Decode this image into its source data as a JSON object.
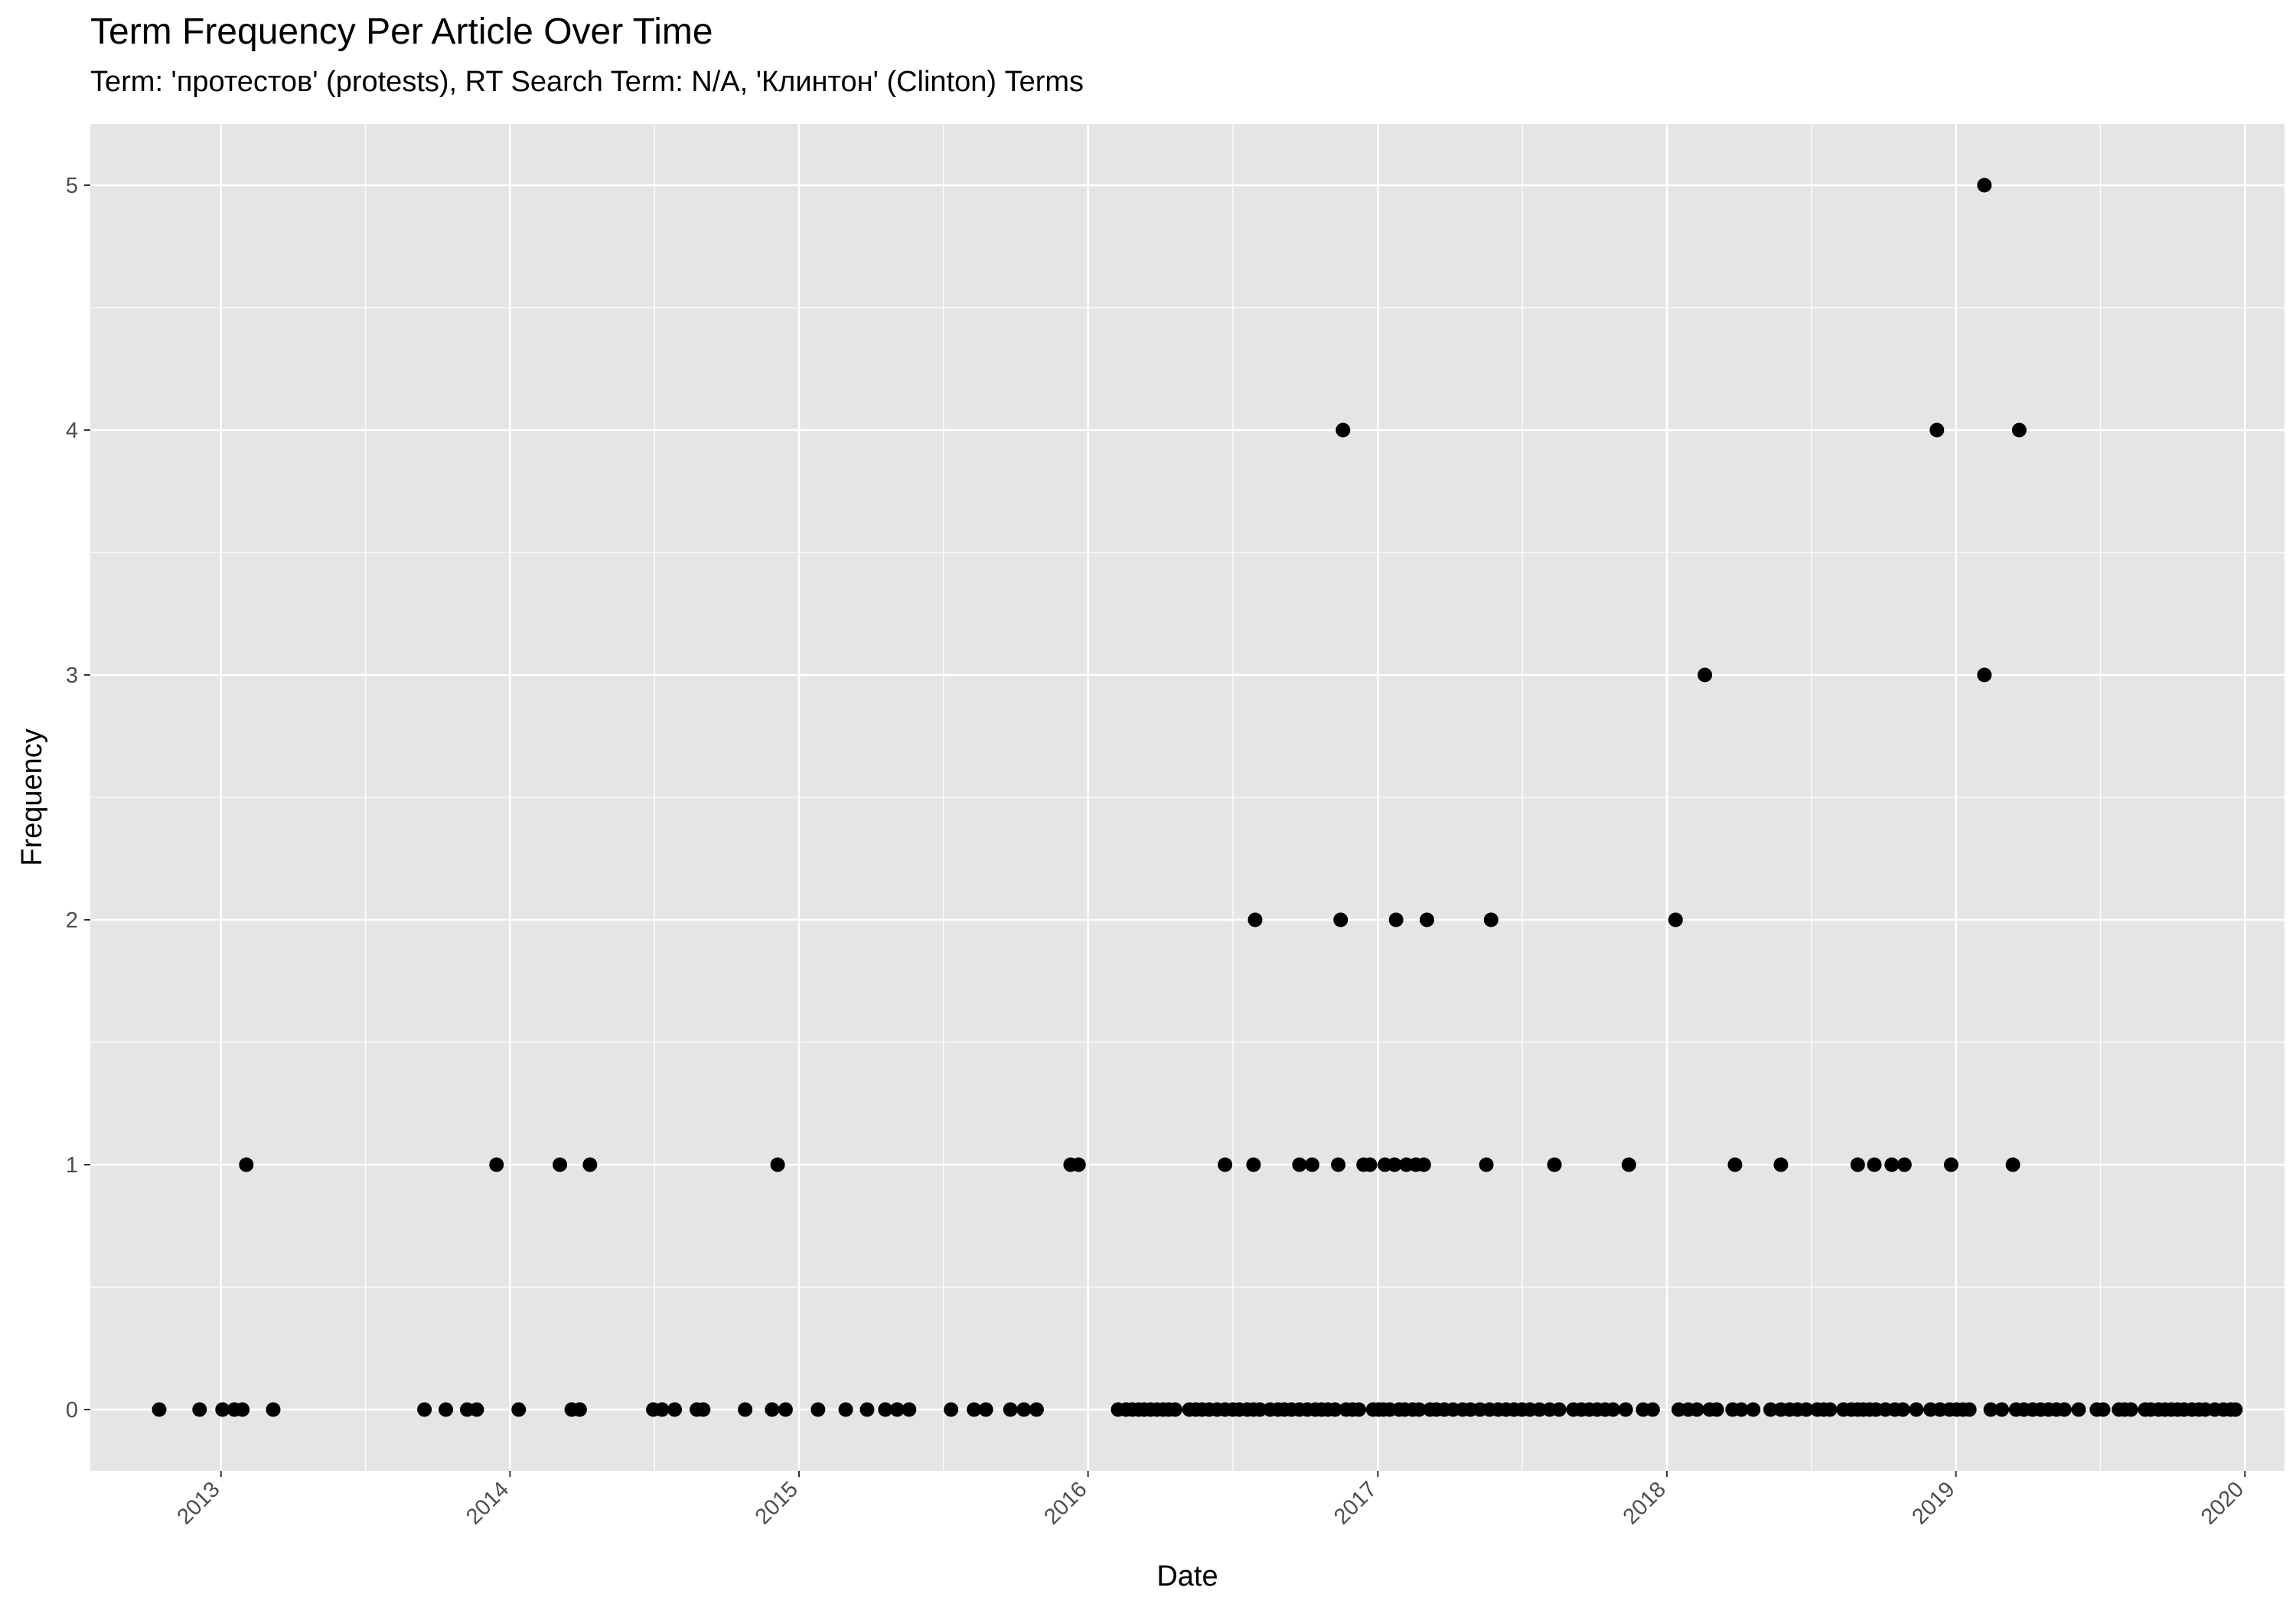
{
  "chart_data": {
    "type": "scatter",
    "title": "Term Frequency Per Article Over Time",
    "subtitle": "Term: 'протестов' (protests), RT Search Term: N/A, 'Клинтон' (Clinton) Terms",
    "xlabel": "Date",
    "ylabel": "Frequency",
    "x_ticks": [
      "2013",
      "2014",
      "2015",
      "2016",
      "2017",
      "2018",
      "2019",
      "2020"
    ],
    "y_ticks": [
      "0",
      "1",
      "2",
      "3",
      "4",
      "5"
    ],
    "xlim": [
      "2012-07-20",
      "2020-02-20"
    ],
    "ylim": [
      -0.25,
      5.25
    ],
    "grid": true,
    "point_color": "#000000",
    "panel_color": "#e5e5e5",
    "gridline_color": "#ffffff",
    "points": [
      {
        "x": "2012-10-15",
        "y": 0
      },
      {
        "x": "2012-12-05",
        "y": 0
      },
      {
        "x": "2013-01-03",
        "y": 0
      },
      {
        "x": "2013-01-18",
        "y": 0
      },
      {
        "x": "2013-01-28",
        "y": 0
      },
      {
        "x": "2013-02-02",
        "y": 1
      },
      {
        "x": "2013-03-08",
        "y": 0
      },
      {
        "x": "2013-09-15",
        "y": 0
      },
      {
        "x": "2013-10-12",
        "y": 0
      },
      {
        "x": "2013-11-08",
        "y": 0
      },
      {
        "x": "2013-11-20",
        "y": 0
      },
      {
        "x": "2013-12-15",
        "y": 1
      },
      {
        "x": "2014-01-12",
        "y": 0
      },
      {
        "x": "2014-03-05",
        "y": 1
      },
      {
        "x": "2014-03-20",
        "y": 0
      },
      {
        "x": "2014-03-30",
        "y": 0
      },
      {
        "x": "2014-04-12",
        "y": 1
      },
      {
        "x": "2014-07-01",
        "y": 0
      },
      {
        "x": "2014-07-12",
        "y": 0
      },
      {
        "x": "2014-07-28",
        "y": 0
      },
      {
        "x": "2014-08-25",
        "y": 0
      },
      {
        "x": "2014-09-02",
        "y": 0
      },
      {
        "x": "2014-10-25",
        "y": 0
      },
      {
        "x": "2014-11-28",
        "y": 0
      },
      {
        "x": "2014-12-05",
        "y": 1
      },
      {
        "x": "2014-12-15",
        "y": 0
      },
      {
        "x": "2015-01-25",
        "y": 0
      },
      {
        "x": "2015-03-01",
        "y": 0
      },
      {
        "x": "2015-03-28",
        "y": 0
      },
      {
        "x": "2015-04-20",
        "y": 0
      },
      {
        "x": "2015-05-05",
        "y": 0
      },
      {
        "x": "2015-05-20",
        "y": 0
      },
      {
        "x": "2015-07-12",
        "y": 0
      },
      {
        "x": "2015-08-10",
        "y": 0
      },
      {
        "x": "2015-08-25",
        "y": 0
      },
      {
        "x": "2015-09-25",
        "y": 0
      },
      {
        "x": "2015-10-12",
        "y": 0
      },
      {
        "x": "2015-10-28",
        "y": 0
      },
      {
        "x": "2015-12-10",
        "y": 1
      },
      {
        "x": "2015-12-20",
        "y": 1
      },
      {
        "x": "2016-02-08",
        "y": 0
      },
      {
        "x": "2016-02-18",
        "y": 0
      },
      {
        "x": "2016-02-26",
        "y": 0
      },
      {
        "x": "2016-03-05",
        "y": 0
      },
      {
        "x": "2016-03-12",
        "y": 0
      },
      {
        "x": "2016-03-20",
        "y": 0
      },
      {
        "x": "2016-03-28",
        "y": 0
      },
      {
        "x": "2016-04-05",
        "y": 0
      },
      {
        "x": "2016-04-12",
        "y": 0
      },
      {
        "x": "2016-04-20",
        "y": 0
      },
      {
        "x": "2016-05-08",
        "y": 0
      },
      {
        "x": "2016-05-16",
        "y": 0
      },
      {
        "x": "2016-05-24",
        "y": 0
      },
      {
        "x": "2016-06-02",
        "y": 0
      },
      {
        "x": "2016-06-12",
        "y": 0
      },
      {
        "x": "2016-06-22",
        "y": 0
      },
      {
        "x": "2016-06-22",
        "y": 1
      },
      {
        "x": "2016-07-02",
        "y": 0
      },
      {
        "x": "2016-07-10",
        "y": 0
      },
      {
        "x": "2016-07-20",
        "y": 0
      },
      {
        "x": "2016-07-28",
        "y": 0
      },
      {
        "x": "2016-07-28",
        "y": 1
      },
      {
        "x": "2016-07-30",
        "y": 2
      },
      {
        "x": "2016-08-05",
        "y": 0
      },
      {
        "x": "2016-08-18",
        "y": 0
      },
      {
        "x": "2016-08-28",
        "y": 0
      },
      {
        "x": "2016-09-05",
        "y": 0
      },
      {
        "x": "2016-09-14",
        "y": 0
      },
      {
        "x": "2016-09-24",
        "y": 0
      },
      {
        "x": "2016-09-24",
        "y": 1
      },
      {
        "x": "2016-10-04",
        "y": 0
      },
      {
        "x": "2016-10-10",
        "y": 1
      },
      {
        "x": "2016-10-14",
        "y": 0
      },
      {
        "x": "2016-10-22",
        "y": 0
      },
      {
        "x": "2016-10-30",
        "y": 0
      },
      {
        "x": "2016-11-08",
        "y": 0
      },
      {
        "x": "2016-11-12",
        "y": 1
      },
      {
        "x": "2016-11-15",
        "y": 2
      },
      {
        "x": "2016-11-18",
        "y": 4
      },
      {
        "x": "2016-11-22",
        "y": 0
      },
      {
        "x": "2016-11-30",
        "y": 0
      },
      {
        "x": "2016-12-08",
        "y": 0
      },
      {
        "x": "2016-12-14",
        "y": 1
      },
      {
        "x": "2016-12-22",
        "y": 1
      },
      {
        "x": "2016-12-26",
        "y": 0
      },
      {
        "x": "2017-01-02",
        "y": 0
      },
      {
        "x": "2017-01-08",
        "y": 0
      },
      {
        "x": "2017-01-10",
        "y": 1
      },
      {
        "x": "2017-01-16",
        "y": 0
      },
      {
        "x": "2017-01-22",
        "y": 1
      },
      {
        "x": "2017-01-24",
        "y": 2
      },
      {
        "x": "2017-01-28",
        "y": 0
      },
      {
        "x": "2017-02-04",
        "y": 0
      },
      {
        "x": "2017-02-06",
        "y": 1
      },
      {
        "x": "2017-02-14",
        "y": 0
      },
      {
        "x": "2017-02-18",
        "y": 1
      },
      {
        "x": "2017-02-22",
        "y": 0
      },
      {
        "x": "2017-02-28",
        "y": 1
      },
      {
        "x": "2017-03-04",
        "y": 2
      },
      {
        "x": "2017-03-08",
        "y": 0
      },
      {
        "x": "2017-03-16",
        "y": 0
      },
      {
        "x": "2017-03-26",
        "y": 0
      },
      {
        "x": "2017-04-06",
        "y": 0
      },
      {
        "x": "2017-04-18",
        "y": 0
      },
      {
        "x": "2017-04-28",
        "y": 0
      },
      {
        "x": "2017-05-10",
        "y": 0
      },
      {
        "x": "2017-05-18",
        "y": 1
      },
      {
        "x": "2017-05-22",
        "y": 0
      },
      {
        "x": "2017-05-24",
        "y": 2
      },
      {
        "x": "2017-06-02",
        "y": 0
      },
      {
        "x": "2017-06-12",
        "y": 0
      },
      {
        "x": "2017-06-22",
        "y": 0
      },
      {
        "x": "2017-07-02",
        "y": 0
      },
      {
        "x": "2017-07-12",
        "y": 0
      },
      {
        "x": "2017-07-24",
        "y": 0
      },
      {
        "x": "2017-08-06",
        "y": 0
      },
      {
        "x": "2017-08-12",
        "y": 1
      },
      {
        "x": "2017-08-18",
        "y": 0
      },
      {
        "x": "2017-09-05",
        "y": 0
      },
      {
        "x": "2017-09-15",
        "y": 0
      },
      {
        "x": "2017-09-25",
        "y": 0
      },
      {
        "x": "2017-10-05",
        "y": 0
      },
      {
        "x": "2017-10-15",
        "y": 0
      },
      {
        "x": "2017-10-25",
        "y": 0
      },
      {
        "x": "2017-11-10",
        "y": 0
      },
      {
        "x": "2017-11-14",
        "y": 1
      },
      {
        "x": "2017-12-02",
        "y": 0
      },
      {
        "x": "2017-12-14",
        "y": 0
      },
      {
        "x": "2018-01-12",
        "y": 2
      },
      {
        "x": "2018-01-16",
        "y": 0
      },
      {
        "x": "2018-01-28",
        "y": 0
      },
      {
        "x": "2018-02-08",
        "y": 0
      },
      {
        "x": "2018-02-18",
        "y": 3
      },
      {
        "x": "2018-02-24",
        "y": 0
      },
      {
        "x": "2018-03-05",
        "y": 0
      },
      {
        "x": "2018-03-25",
        "y": 0
      },
      {
        "x": "2018-03-28",
        "y": 1
      },
      {
        "x": "2018-04-05",
        "y": 0
      },
      {
        "x": "2018-04-20",
        "y": 0
      },
      {
        "x": "2018-05-12",
        "y": 0
      },
      {
        "x": "2018-05-25",
        "y": 0
      },
      {
        "x": "2018-05-25",
        "y": 1
      },
      {
        "x": "2018-06-05",
        "y": 0
      },
      {
        "x": "2018-06-15",
        "y": 0
      },
      {
        "x": "2018-06-26",
        "y": 0
      },
      {
        "x": "2018-07-10",
        "y": 0
      },
      {
        "x": "2018-07-18",
        "y": 0
      },
      {
        "x": "2018-07-26",
        "y": 0
      },
      {
        "x": "2018-08-12",
        "y": 0
      },
      {
        "x": "2018-08-22",
        "y": 0
      },
      {
        "x": "2018-08-30",
        "y": 0
      },
      {
        "x": "2018-08-30",
        "y": 1
      },
      {
        "x": "2018-09-06",
        "y": 0
      },
      {
        "x": "2018-09-14",
        "y": 0
      },
      {
        "x": "2018-09-20",
        "y": 1
      },
      {
        "x": "2018-09-22",
        "y": 0
      },
      {
        "x": "2018-10-04",
        "y": 0
      },
      {
        "x": "2018-10-12",
        "y": 1
      },
      {
        "x": "2018-10-16",
        "y": 0
      },
      {
        "x": "2018-10-26",
        "y": 0
      },
      {
        "x": "2018-10-28",
        "y": 1
      },
      {
        "x": "2018-11-12",
        "y": 0
      },
      {
        "x": "2018-11-30",
        "y": 0
      },
      {
        "x": "2018-12-08",
        "y": 4
      },
      {
        "x": "2018-12-12",
        "y": 0
      },
      {
        "x": "2018-12-24",
        "y": 0
      },
      {
        "x": "2018-12-26",
        "y": 1
      },
      {
        "x": "2019-01-02",
        "y": 0
      },
      {
        "x": "2019-01-10",
        "y": 0
      },
      {
        "x": "2019-01-18",
        "y": 0
      },
      {
        "x": "2019-02-06",
        "y": 3
      },
      {
        "x": "2019-02-06",
        "y": 5
      },
      {
        "x": "2019-02-14",
        "y": 0
      },
      {
        "x": "2019-02-28",
        "y": 0
      },
      {
        "x": "2019-03-14",
        "y": 1
      },
      {
        "x": "2019-03-18",
        "y": 0
      },
      {
        "x": "2019-03-22",
        "y": 4
      },
      {
        "x": "2019-03-28",
        "y": 0
      },
      {
        "x": "2019-04-08",
        "y": 0
      },
      {
        "x": "2019-04-18",
        "y": 0
      },
      {
        "x": "2019-04-28",
        "y": 0
      },
      {
        "x": "2019-05-08",
        "y": 0
      },
      {
        "x": "2019-05-18",
        "y": 0
      },
      {
        "x": "2019-06-05",
        "y": 0
      },
      {
        "x": "2019-06-28",
        "y": 0
      },
      {
        "x": "2019-07-06",
        "y": 0
      },
      {
        "x": "2019-07-26",
        "y": 0
      },
      {
        "x": "2019-08-02",
        "y": 0
      },
      {
        "x": "2019-08-10",
        "y": 0
      },
      {
        "x": "2019-08-28",
        "y": 0
      },
      {
        "x": "2019-09-04",
        "y": 0
      },
      {
        "x": "2019-09-14",
        "y": 0
      },
      {
        "x": "2019-09-22",
        "y": 0
      },
      {
        "x": "2019-09-30",
        "y": 0
      },
      {
        "x": "2019-10-08",
        "y": 0
      },
      {
        "x": "2019-10-16",
        "y": 0
      },
      {
        "x": "2019-10-26",
        "y": 0
      },
      {
        "x": "2019-11-04",
        "y": 0
      },
      {
        "x": "2019-11-12",
        "y": 0
      },
      {
        "x": "2019-11-24",
        "y": 0
      },
      {
        "x": "2019-12-05",
        "y": 0
      },
      {
        "x": "2019-12-14",
        "y": 0
      },
      {
        "x": "2019-12-20",
        "y": 0
      }
    ]
  }
}
